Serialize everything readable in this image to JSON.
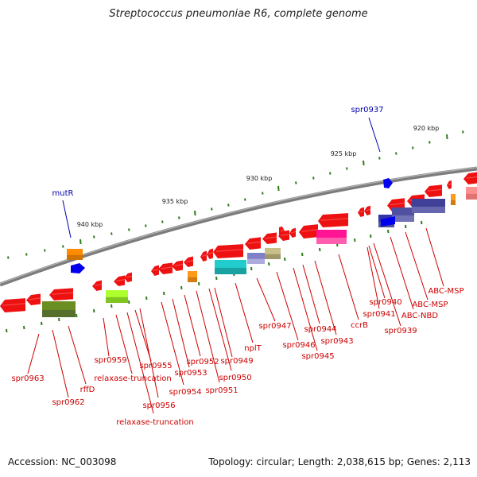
{
  "title": "Streptococcus pneumoniae R6, complete genome",
  "footer": {
    "accession": "Accession: NC_003098",
    "summary": "Topology: circular; Length: 2,038,615 bp; Genes: 2,113"
  },
  "colors": {
    "ruler_tick": "#2e7d1a",
    "backbone": "#8a8a8a",
    "gene_red": "#ee1111",
    "label_red": "#cc0000",
    "label_blue": "#0000aa"
  },
  "ruler": [
    {
      "label": "940 kbp"
    },
    {
      "label": "935 kbp"
    },
    {
      "label": "930 kbp"
    },
    {
      "label": "925 kbp"
    },
    {
      "label": "920 kbp"
    }
  ],
  "top_labels": [
    {
      "text": "mutR"
    },
    {
      "text": "spr0937"
    }
  ],
  "gene_labels": [
    {
      "text": "spr0963"
    },
    {
      "text": "spr0962"
    },
    {
      "text": "rffD"
    },
    {
      "text": "spr0959"
    },
    {
      "text": "relaxase-truncation"
    },
    {
      "text": "spr0955"
    },
    {
      "text": "spr0956"
    },
    {
      "text": "relaxase-truncation"
    },
    {
      "text": "spr0954"
    },
    {
      "text": "spr0953"
    },
    {
      "text": "spr0952"
    },
    {
      "text": "spr0951"
    },
    {
      "text": "spr0950"
    },
    {
      "text": "spr0949"
    },
    {
      "text": "nplT"
    },
    {
      "text": "spr0947"
    },
    {
      "text": "spr0946"
    },
    {
      "text": "spr0945"
    },
    {
      "text": "spr0944"
    },
    {
      "text": "spr0943"
    },
    {
      "text": "ccrB"
    },
    {
      "text": "spr0941"
    },
    {
      "text": "spr0940"
    },
    {
      "text": "spr0939"
    },
    {
      "text": "ABC-NBD"
    },
    {
      "text": "ABC-MSP"
    },
    {
      "text": "ABC-MSP"
    }
  ]
}
